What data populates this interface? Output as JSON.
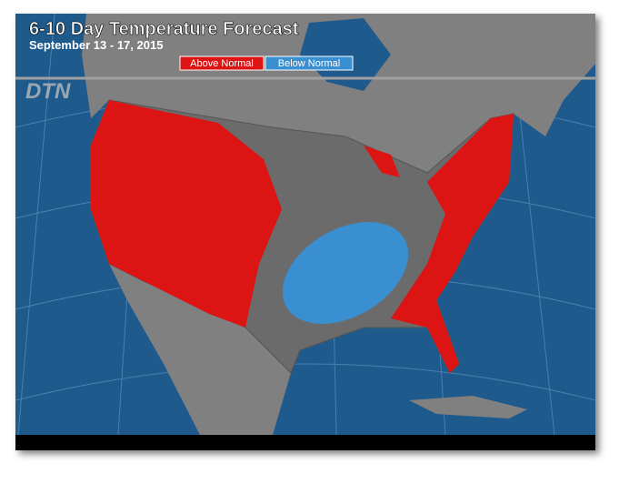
{
  "header": {
    "title": "6-10 Day Temperature Forecast",
    "subtitle": "September 13 - 17, 2015"
  },
  "legend": [
    {
      "label": "Above Normal",
      "color": "#dc1414"
    },
    {
      "label": "Below Normal",
      "color": "#3a8fd0"
    }
  ],
  "logo": "DTN"
}
